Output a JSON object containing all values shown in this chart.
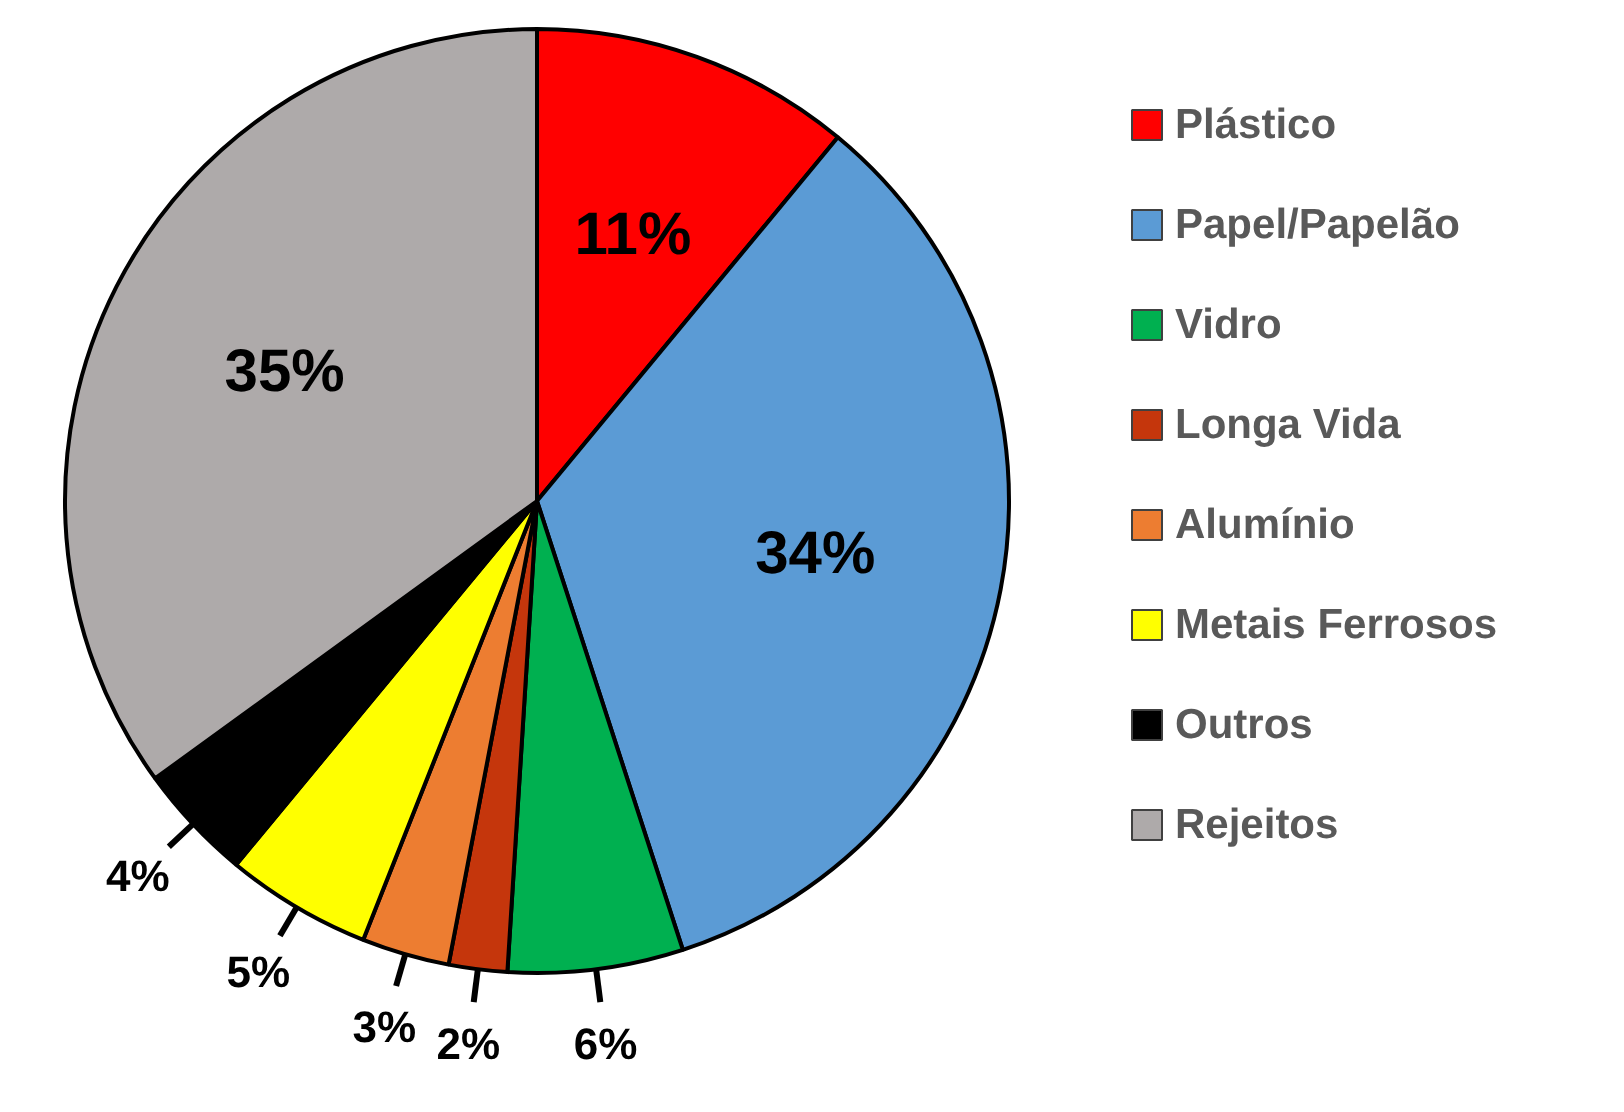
{
  "chart_data": {
    "type": "pie",
    "categories": [
      "Plástico",
      "Papel/Papelão",
      "Vidro",
      "Longa Vida",
      "Alumínio",
      "Metais Ferrosos",
      "Outros",
      "Rejeitos"
    ],
    "values": [
      11,
      34,
      6,
      2,
      3,
      5,
      4,
      35
    ],
    "colors": [
      "#ff0000",
      "#5b9bd5",
      "#00b050",
      "#c5360c",
      "#ed7d31",
      "#ffff00",
      "#000000",
      "#aeaaaa"
    ],
    "value_labels": [
      "11%",
      "34%",
      "6%",
      "2%",
      "3%",
      "5%",
      "4%",
      "35%"
    ],
    "legend": "right"
  }
}
